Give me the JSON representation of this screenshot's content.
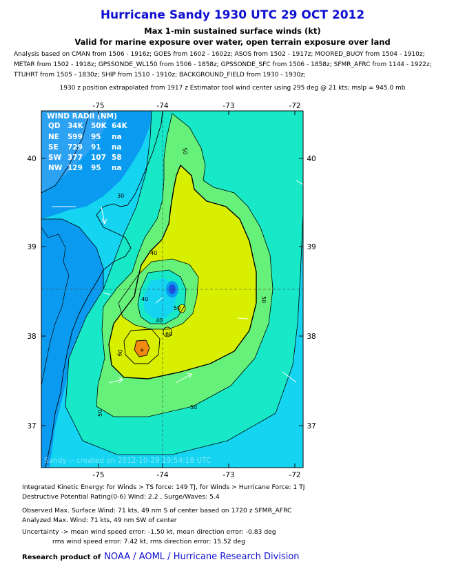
{
  "header": {
    "title": "Hurricane Sandy 1930 UTC 29 OCT 2012",
    "subtitle1": "Max 1-min sustained surface winds (kt)",
    "subtitle2": "Valid for marine exposure over water, open terrain exposure over land",
    "analysis_lines": [
      "Analysis based on CMAN from 1506 - 1916z; GOES from 1602 - 1602z; ASOS from 1502 - 1917z; MOORED_BUOY from 1504 - 1910z;",
      "METAR from 1502 - 1918z; GPSSONDE_WL150 from 1506 - 1858z; GPSSONDE_SFC from 1506 - 1858z; SFMR_AFRC from 1144 - 1922z;",
      "TTUHRT from 1505 - 1830z; SHIP from 1510 - 1910z; BACKGROUND_FIELD from 1930 - 1930z;"
    ],
    "position_note": "1930 z position extrapolated from 1917 z Estimator tool wind center using 295 deg @ 21 kts; mslp = 945.0 mb"
  },
  "map": {
    "lon_labels": [
      "-75",
      "-74",
      "-73",
      "-72"
    ],
    "lat_labels": [
      "40",
      "39",
      "38",
      "37"
    ],
    "contour_labels": [
      "30",
      "50",
      "40",
      "50",
      "50",
      "60",
      "40",
      "50",
      "50",
      "60",
      "40"
    ],
    "wind_radii": {
      "title": "WIND RADII (NM)",
      "header": [
        "QD",
        "34K",
        "50K",
        "64K"
      ],
      "rows": [
        [
          "NE",
          "599",
          "95",
          "na"
        ],
        [
          "SE",
          "729",
          "91",
          "na"
        ],
        [
          "SW",
          "377",
          "107",
          "58"
        ],
        [
          "NW",
          "129",
          "95",
          "na"
        ]
      ]
    },
    "watermark": "Sandy -- created on 2012-10-29 19:54:18 UTC",
    "colors": {
      "lt30": "#0a9bf0",
      "b30_40": "#14d4f2",
      "b40_50": "#16e8c8",
      "b50_60": "#66f27a",
      "b60_70": "#d8f000",
      "b70_80": "#f08a10",
      "land_shade": "#4aa8f6"
    }
  },
  "stats": {
    "ike": "Integrated Kinetic Energy: for Winds > TS force: 149 TJ, for Winds > Hurricane Force: 1 TJ",
    "dp": "Destructive Potential Rating(0-6)   Wind: 2.2 , Surge/Waves: 5.4",
    "observed": "Observed Max. Surface Wind: 71 kts, 49 nm S of center based on 1720 z SFMR_AFRC",
    "analyzed": "Analyzed Max. Wind: 71 kts, 49 nm  SW of center",
    "uncertainty1": "Uncertainty -> mean wind speed error:  -1.50 kt, mean direction error:  -0.83 deg",
    "uncertainty2": "rms wind speed error: 7.42 kt, rms direction error: 15.52 deg"
  },
  "footer": {
    "prefix": "Research product of",
    "org": "NOAA  /  AOML  /  Hurricane Research Division"
  }
}
